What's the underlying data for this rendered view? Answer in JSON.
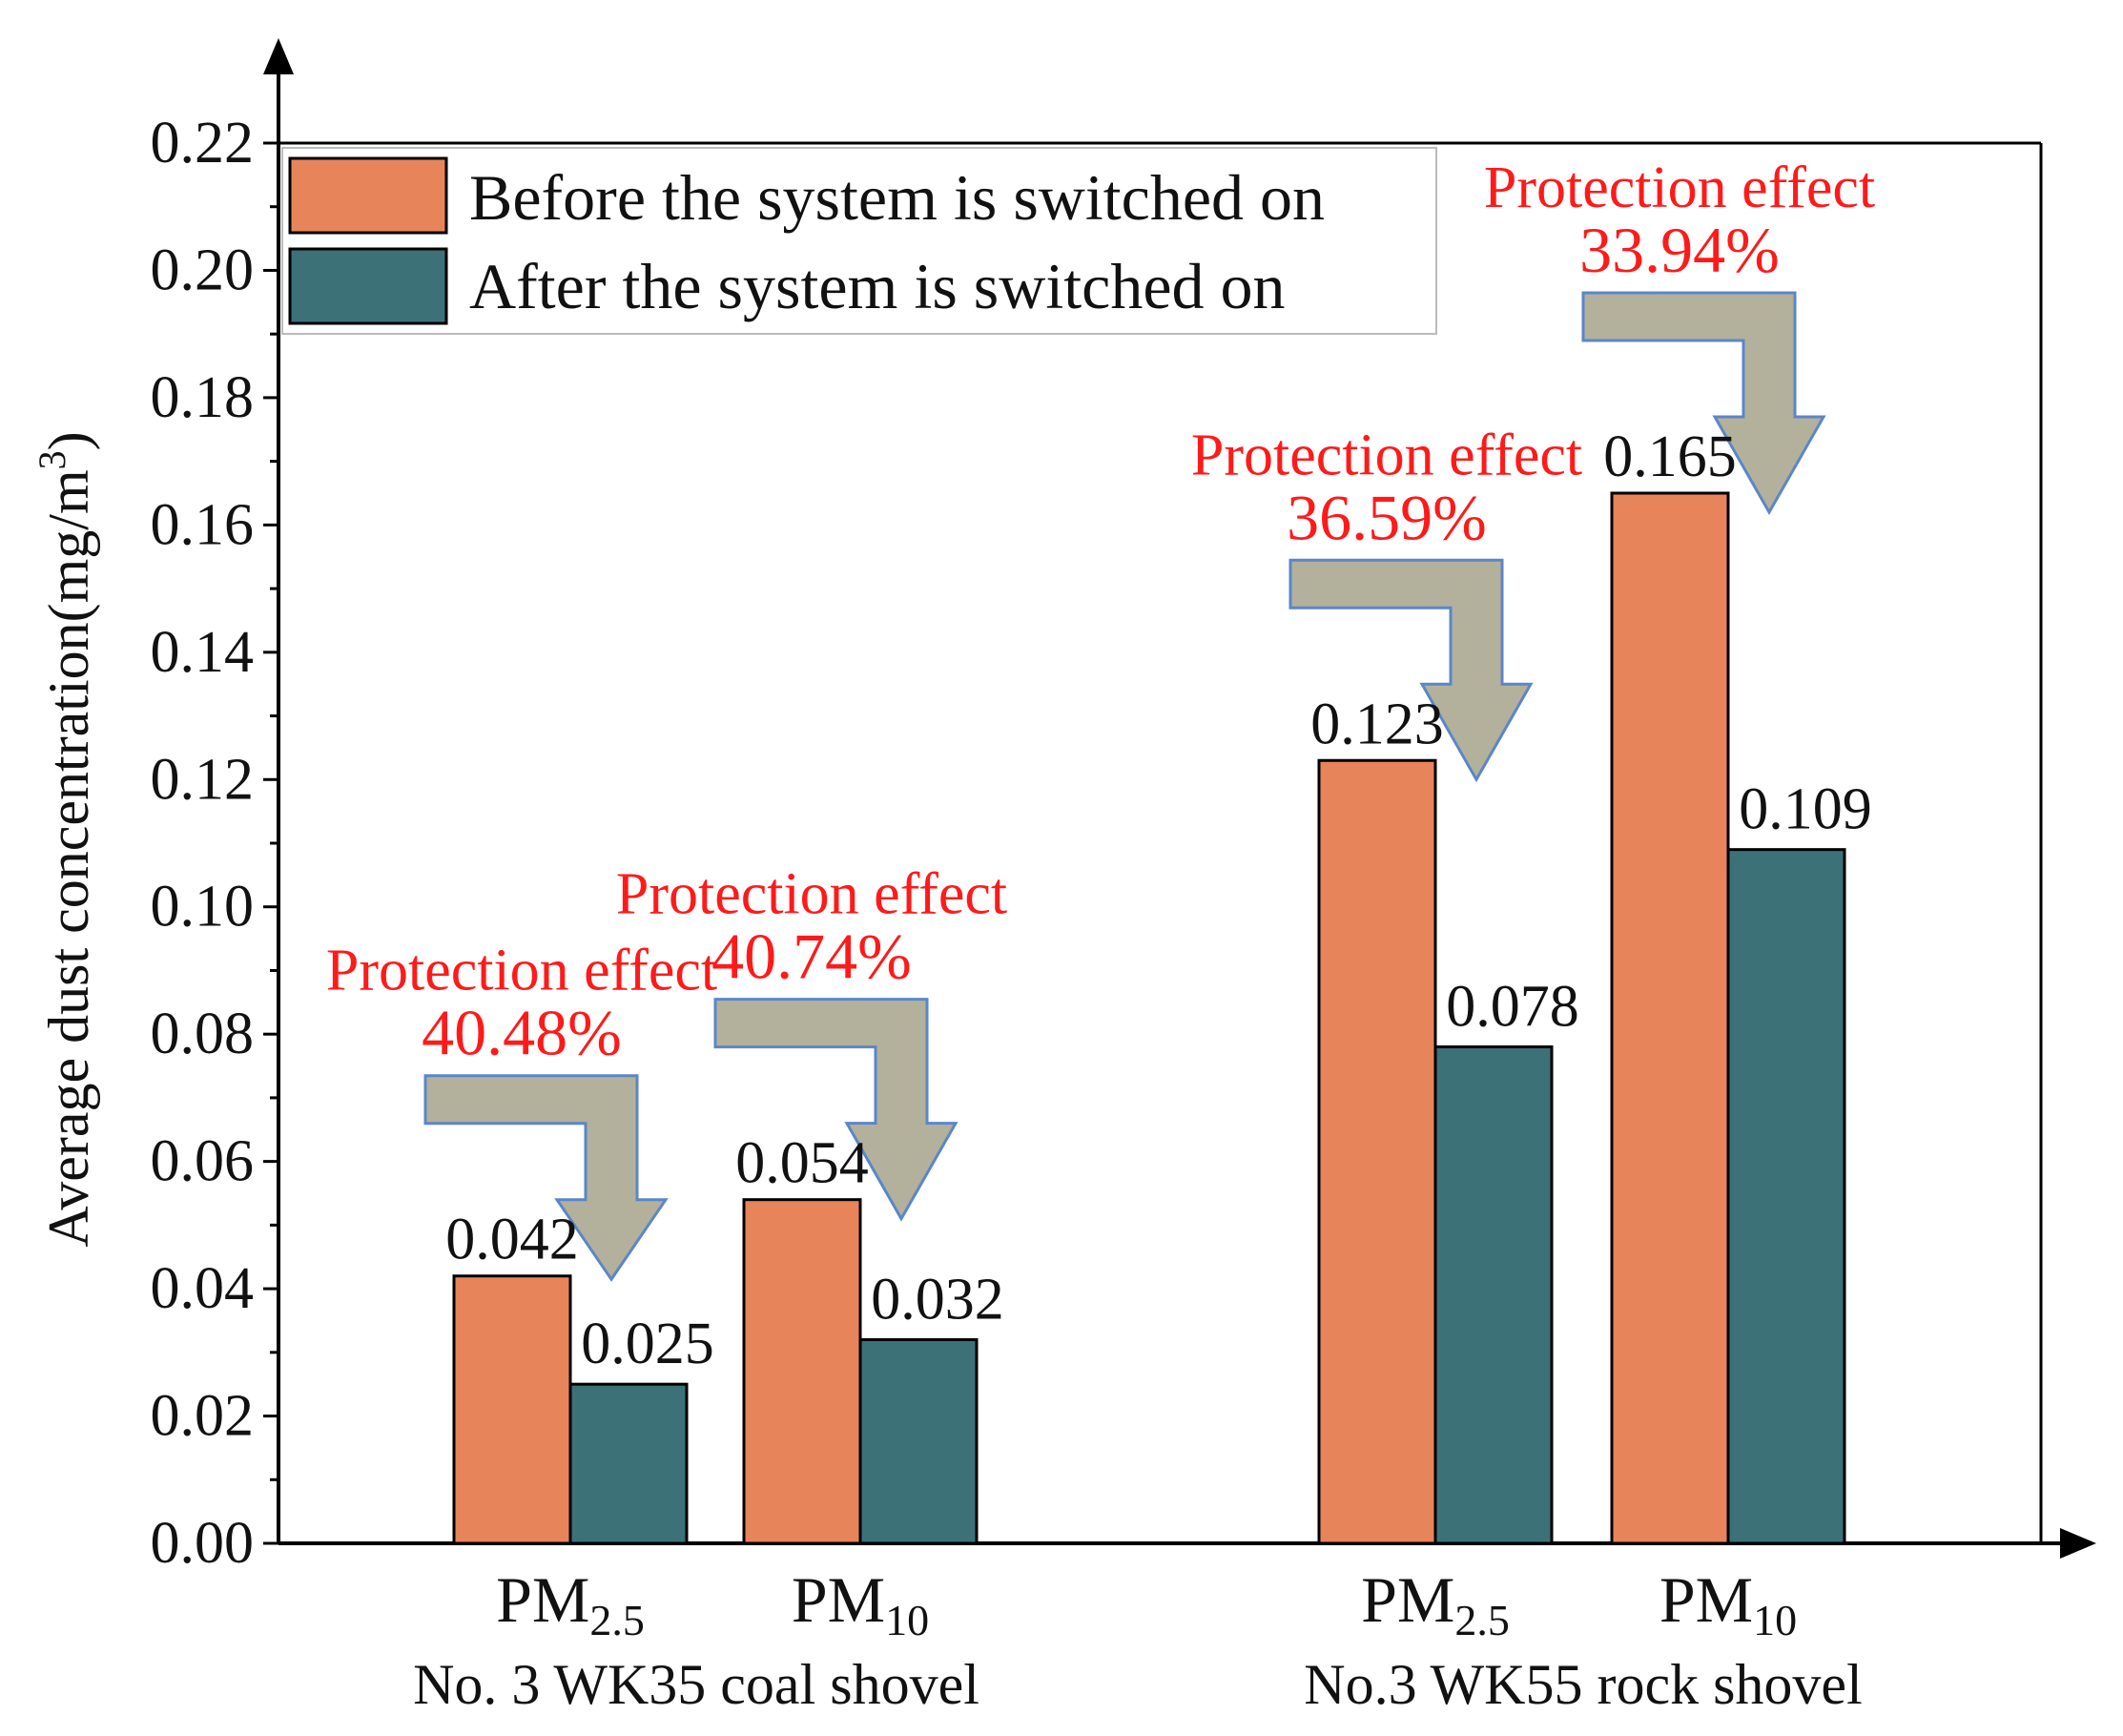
{
  "chart_data": {
    "type": "bar",
    "ylabel": "Average dust concentration(mg/m",
    "ylabel_sup": "3",
    "ylabel_close": ")",
    "ylim": [
      0,
      0.22
    ],
    "yticks": [
      "0.00",
      "0.02",
      "0.04",
      "0.06",
      "0.08",
      "0.10",
      "0.12",
      "0.14",
      "0.16",
      "0.18",
      "0.20",
      "0.22"
    ],
    "groups": [
      {
        "name": "No. 3 WK35 coal shovel",
        "categories": [
          {
            "label": "PM",
            "sub": "2.5",
            "before": 0.042,
            "after": 0.025,
            "before_label": "0.042",
            "after_label": "0.025",
            "effect_text": "Protection effect",
            "effect_pct": "40.48%"
          },
          {
            "label": "PM",
            "sub": "10",
            "before": 0.054,
            "after": 0.032,
            "before_label": "0.054",
            "after_label": "0.032",
            "effect_text": "Protection effect",
            "effect_pct": "40.74%"
          }
        ]
      },
      {
        "name": "No.3 WK55 rock shovel",
        "categories": [
          {
            "label": "PM",
            "sub": "2.5",
            "before": 0.123,
            "after": 0.078,
            "before_label": "0.123",
            "after_label": "0.078",
            "effect_text": "Protection effect",
            "effect_pct": "36.59%"
          },
          {
            "label": "PM",
            "sub": "10",
            "before": 0.165,
            "after": 0.109,
            "before_label": "0.165",
            "after_label": "0.109",
            "effect_text": "Protection effect",
            "effect_pct": "33.94%"
          }
        ]
      }
    ],
    "series": [
      {
        "name": "Before the system is switched on",
        "color": "#e8845a"
      },
      {
        "name": "After the system is switched on",
        "color": "#3d7178"
      }
    ],
    "arrow_color": "#b3b19c",
    "arrow_stroke": "#5b86c8",
    "legend_position": "top-left"
  }
}
